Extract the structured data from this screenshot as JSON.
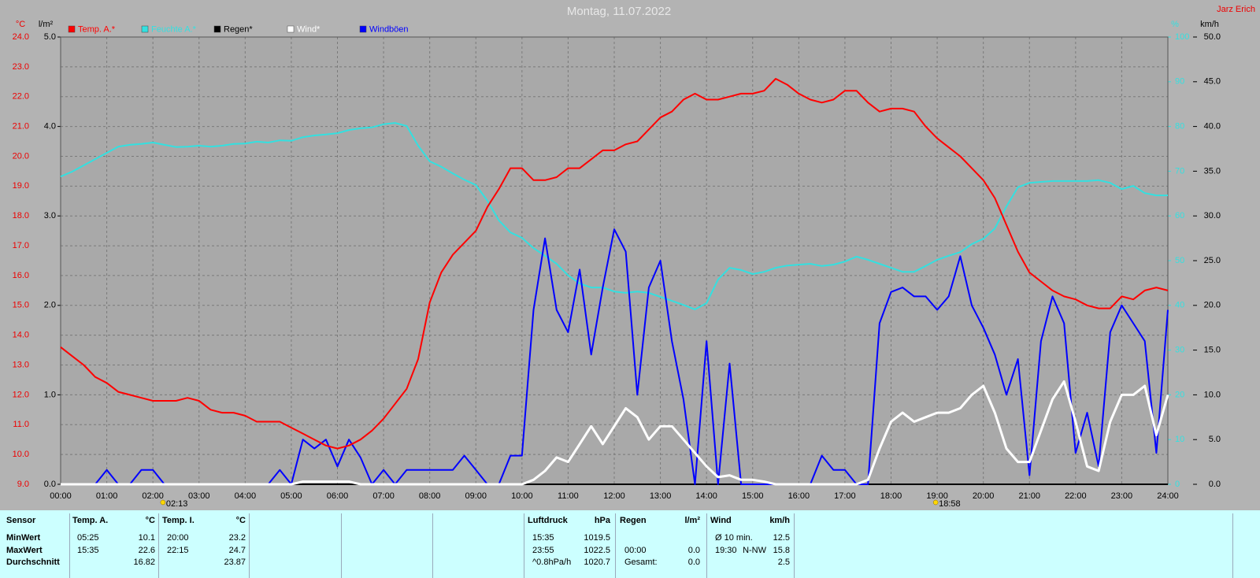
{
  "owner": "Jarz Erich",
  "chart_data": {
    "type": "line",
    "title": "Montag, 11.07.2022",
    "y_unit": "°C",
    "y3_unit": "l/m²",
    "y4_unit": "%",
    "y2_unit": "km/h",
    "xlim": [
      0,
      24
    ],
    "xticks": [
      {
        "value": 0,
        "label": "00:00"
      },
      {
        "value": 1,
        "label": "01:00"
      },
      {
        "value": 2,
        "label": "02:00"
      },
      {
        "value": 3,
        "label": "03:00"
      },
      {
        "value": 4,
        "label": "04:00"
      },
      {
        "value": 5,
        "label": "05:00"
      },
      {
        "value": 6,
        "label": "06:00"
      },
      {
        "value": 7,
        "label": "07:00"
      },
      {
        "value": 8,
        "label": "08:00"
      },
      {
        "value": 9,
        "label": "09:00"
      },
      {
        "value": 10,
        "label": "10:00"
      },
      {
        "value": 11,
        "label": "11:00"
      },
      {
        "value": 12,
        "label": "12:00"
      },
      {
        "value": 13,
        "label": "13:00"
      },
      {
        "value": 14,
        "label": "14:00"
      },
      {
        "value": 15,
        "label": "15:00"
      },
      {
        "value": 16,
        "label": "16:00"
      },
      {
        "value": 17,
        "label": "17:00"
      },
      {
        "value": 18,
        "label": "18:00"
      },
      {
        "value": 19,
        "label": "19:00"
      },
      {
        "value": 20,
        "label": "20:00"
      },
      {
        "value": 21,
        "label": "21:00"
      },
      {
        "value": 22,
        "label": "22:00"
      },
      {
        "value": 23,
        "label": "23:00"
      },
      {
        "value": 24,
        "label": "24:00"
      }
    ],
    "ylim": [
      9,
      24
    ],
    "yticks": [
      {
        "value": 9,
        "label": "9.0"
      },
      {
        "value": 10,
        "label": "10.0"
      },
      {
        "value": 11,
        "label": "11.0"
      },
      {
        "value": 12,
        "label": "12.0"
      },
      {
        "value": 13,
        "label": "13.0"
      },
      {
        "value": 14,
        "label": "14.0"
      },
      {
        "value": 15,
        "label": "15.0"
      },
      {
        "value": 16,
        "label": "16.0"
      },
      {
        "value": 17,
        "label": "17.0"
      },
      {
        "value": 18,
        "label": "18.0"
      },
      {
        "value": 19,
        "label": "19.0"
      },
      {
        "value": 20,
        "label": "20.0"
      },
      {
        "value": 21,
        "label": "21.0"
      },
      {
        "value": 22,
        "label": "22.0"
      },
      {
        "value": 23,
        "label": "23.0"
      },
      {
        "value": 24,
        "label": "24.0"
      }
    ],
    "y3lim": [
      0,
      5
    ],
    "y3ticks": [
      {
        "value": 0,
        "label": "0.0"
      },
      {
        "value": 1,
        "label": "1.0"
      },
      {
        "value": 2,
        "label": "2.0"
      },
      {
        "value": 3,
        "label": "3.0"
      },
      {
        "value": 4,
        "label": "4.0"
      },
      {
        "value": 5,
        "label": "5.0"
      }
    ],
    "y4lim": [
      0,
      100
    ],
    "y4ticks": [
      0,
      10,
      20,
      30,
      40,
      50,
      60,
      70,
      80,
      90,
      100
    ],
    "y2lim": [
      0,
      50
    ],
    "y2ticks": [
      {
        "value": 0,
        "label": "0.0"
      },
      {
        "value": 5,
        "label": "5.0"
      },
      {
        "value": 10,
        "label": "10.0"
      },
      {
        "value": 15,
        "label": "15.0"
      },
      {
        "value": 20,
        "label": "20.0"
      },
      {
        "value": 25,
        "label": "25.0"
      },
      {
        "value": 30,
        "label": "30.0"
      },
      {
        "value": 35,
        "label": "35.0"
      },
      {
        "value": 40,
        "label": "40.0"
      },
      {
        "value": 45,
        "label": "45.0"
      },
      {
        "value": 50,
        "label": "50.0"
      }
    ],
    "grid": true,
    "x": [
      0,
      0.25,
      0.5,
      0.75,
      1,
      1.25,
      1.5,
      1.75,
      2,
      2.25,
      2.5,
      2.75,
      3,
      3.25,
      3.5,
      3.75,
      4,
      4.25,
      4.5,
      4.75,
      5,
      5.25,
      5.5,
      5.75,
      6,
      6.25,
      6.5,
      6.75,
      7,
      7.25,
      7.5,
      7.75,
      8,
      8.25,
      8.5,
      8.75,
      9,
      9.25,
      9.5,
      9.75,
      10,
      10.25,
      10.5,
      10.75,
      11,
      11.25,
      11.5,
      11.75,
      12,
      12.25,
      12.5,
      12.75,
      13,
      13.25,
      13.5,
      13.75,
      14,
      14.25,
      14.5,
      14.75,
      15,
      15.25,
      15.5,
      15.75,
      16,
      16.25,
      16.5,
      16.75,
      17,
      17.25,
      17.5,
      17.75,
      18,
      18.25,
      18.5,
      18.75,
      19,
      19.25,
      19.5,
      19.75,
      20,
      20.25,
      20.5,
      20.75,
      21,
      21.25,
      21.5,
      21.75,
      22,
      22.25,
      22.5,
      22.75,
      23,
      23.25,
      23.5,
      23.75,
      24
    ],
    "series": [
      {
        "name": "Temp. A.*",
        "color": "#ff0000",
        "values": [
          13.6,
          13.3,
          13.0,
          12.6,
          12.4,
          12.1,
          12.0,
          11.9,
          11.8,
          11.8,
          11.8,
          11.9,
          11.8,
          11.5,
          11.4,
          11.4,
          11.3,
          11.1,
          11.1,
          11.1,
          10.9,
          10.7,
          10.5,
          10.3,
          10.2,
          10.3,
          10.5,
          10.8,
          11.2,
          11.7,
          12.2,
          13.2,
          15.1,
          16.1,
          16.7,
          17.1,
          17.5,
          18.3,
          18.9,
          19.6,
          19.6,
          19.2,
          19.2,
          19.3,
          19.6,
          19.6,
          19.9,
          20.2,
          20.2,
          20.4,
          20.5,
          20.9,
          21.3,
          21.5,
          21.9,
          22.1,
          21.9,
          21.9,
          22.0,
          22.1,
          22.1,
          22.2,
          22.6,
          22.4,
          22.1,
          21.9,
          21.8,
          21.9,
          22.2,
          22.2,
          21.8,
          21.5,
          21.6,
          21.6,
          21.5,
          21.0,
          20.6,
          20.3,
          20.0,
          19.6,
          19.2,
          18.6,
          17.7,
          16.8,
          16.1,
          15.8,
          15.5,
          15.3,
          15.2,
          15.0,
          14.9,
          14.9,
          15.3,
          15.2,
          15.5,
          15.6,
          15.5
        ]
      },
      {
        "name": "Feuchte A.*",
        "color": "#33e0e0",
        "axis": "y4",
        "values": [
          68.8,
          69.9,
          71.3,
          72.7,
          74.1,
          75.5,
          75.9,
          76.1,
          76.4,
          75.9,
          75.4,
          75.5,
          75.7,
          75.5,
          75.7,
          76.1,
          76.2,
          76.6,
          76.4,
          76.9,
          76.8,
          77.6,
          78.0,
          78.2,
          78.5,
          79.2,
          79.6,
          79.8,
          80.5,
          80.8,
          80.1,
          75.7,
          72.2,
          71.0,
          69.5,
          68.1,
          66.9,
          63.4,
          59.0,
          56.3,
          55.1,
          52.8,
          51.1,
          49.3,
          46.7,
          44.9,
          44.0,
          44.0,
          43.1,
          42.8,
          43.1,
          42.8,
          41.9,
          41.0,
          40.1,
          39.1,
          40.5,
          45.8,
          48.4,
          47.9,
          47.0,
          47.5,
          48.4,
          48.9,
          49.1,
          49.3,
          48.8,
          49.1,
          49.8,
          50.9,
          50.2,
          49.3,
          48.4,
          47.5,
          47.5,
          48.8,
          50.2,
          51.1,
          51.9,
          53.7,
          54.9,
          57.2,
          62.1,
          66.4,
          67.4,
          67.6,
          67.8,
          67.8,
          67.8,
          67.8,
          68.0,
          67.4,
          66.0,
          66.7,
          65.1,
          64.6,
          64.6
        ]
      },
      {
        "name": "Regen*",
        "color": "#000000",
        "axis": "y3",
        "values": [
          0,
          0,
          0,
          0,
          0,
          0,
          0,
          0,
          0,
          0,
          0,
          0,
          0,
          0,
          0,
          0,
          0,
          0,
          0,
          0,
          0,
          0,
          0,
          0,
          0,
          0,
          0,
          0,
          0,
          0,
          0,
          0,
          0,
          0,
          0,
          0,
          0,
          0,
          0,
          0,
          0,
          0,
          0,
          0,
          0,
          0,
          0,
          0,
          0,
          0,
          0,
          0,
          0,
          0,
          0,
          0,
          0,
          0,
          0,
          0,
          0,
          0,
          0,
          0,
          0,
          0,
          0,
          0,
          0,
          0,
          0,
          0,
          0,
          0,
          0,
          0,
          0,
          0,
          0,
          0,
          0,
          0,
          0,
          0,
          0,
          0,
          0,
          0,
          0,
          0,
          0,
          0,
          0,
          0,
          0,
          0,
          0
        ]
      },
      {
        "name": "Wind*",
        "color": "#ffffff",
        "axis": "y2",
        "values": [
          0,
          0,
          0,
          0,
          0,
          0,
          0,
          0,
          0,
          0,
          0,
          0,
          0,
          0,
          0,
          0,
          0,
          0,
          0,
          0,
          0,
          0.3,
          0.3,
          0.3,
          0.3,
          0.3,
          0,
          0,
          0,
          0,
          0,
          0,
          0,
          0,
          0,
          0,
          0,
          0,
          0,
          0,
          0,
          0.5,
          1.5,
          3.0,
          2.5,
          4.5,
          6.5,
          4.5,
          6.5,
          8.5,
          7.5,
          5.0,
          6.5,
          6.5,
          5.0,
          3.5,
          2.0,
          0.8,
          1.0,
          0.5,
          0.5,
          0.3,
          0,
          0,
          0,
          0,
          0,
          0,
          0,
          0,
          0.5,
          4.0,
          7.0,
          8.0,
          7.0,
          7.5,
          8.0,
          8.0,
          8.5,
          10.0,
          11.0,
          8.0,
          4.0,
          2.5,
          2.5,
          6.0,
          9.5,
          11.5,
          7.0,
          2.0,
          1.5,
          7.0,
          10.0,
          10.0,
          11.0,
          5.5,
          10.0
        ]
      },
      {
        "name": "Windböen",
        "color": "#0000ff",
        "axis": "y2",
        "values": [
          0,
          0,
          0,
          0,
          1.6,
          0,
          0,
          1.6,
          1.6,
          0,
          0,
          0,
          0,
          0,
          0,
          0,
          0,
          0,
          0,
          1.6,
          0,
          5.0,
          4.0,
          5.0,
          2.0,
          5.0,
          3.0,
          0,
          1.6,
          0,
          1.6,
          1.6,
          1.6,
          1.6,
          1.6,
          3.2,
          1.6,
          0,
          0,
          3.2,
          3.2,
          19.5,
          27.5,
          19.5,
          17,
          24,
          14.5,
          22,
          28.5,
          26,
          10,
          22,
          25,
          16,
          9.5,
          0,
          16,
          0,
          13.5,
          0,
          0,
          0,
          0,
          0,
          0,
          0,
          3.2,
          1.6,
          1.6,
          0,
          0,
          18,
          21.5,
          22,
          21,
          21,
          19.5,
          21,
          25.5,
          20,
          17.5,
          14.5,
          10,
          14,
          1,
          16,
          21,
          18,
          3.5,
          8,
          2,
          17,
          20,
          18,
          16,
          3.5,
          19.5
        ]
      }
    ],
    "annotations": [
      {
        "x": 2.2167,
        "label": "02:13"
      },
      {
        "x": 18.9667,
        "label": "18:58"
      }
    ]
  },
  "table": {
    "header_label": "Sensor",
    "row_labels": [
      "MinWert",
      "MaxWert",
      "Durchschnitt"
    ],
    "groups": [
      {
        "name": "Temp. A.",
        "unit": "°C",
        "cells": [
          [
            "05:25",
            "10.1"
          ],
          [
            "15:35",
            "22.6"
          ],
          [
            null,
            "16.82"
          ]
        ]
      },
      {
        "name": "Temp. I.",
        "unit": "°C",
        "cells": [
          [
            "20:00",
            "23.2"
          ],
          [
            "22:15",
            "24.7"
          ],
          [
            null,
            "23.87"
          ]
        ]
      },
      {
        "name": "Luftdruck",
        "unit": "hPa",
        "cells": [
          [
            "15:35",
            "1019.5"
          ],
          [
            "23:55",
            "1022.5"
          ],
          [
            "^0.8hPa/h",
            "1020.7"
          ]
        ]
      },
      {
        "name": "Regen",
        "unit": "l/m²",
        "cells": [
          [
            null,
            null
          ],
          [
            "00:00",
            "0.0"
          ],
          [
            "Gesamt:",
            "0.0"
          ]
        ]
      },
      {
        "name": "Wind",
        "unit": "km/h",
        "cells": [
          [
            "Ø 10 min.",
            "12.5"
          ],
          [
            "19:30",
            "N-NW",
            "15.8"
          ],
          [
            null,
            "2.5"
          ]
        ]
      }
    ]
  }
}
